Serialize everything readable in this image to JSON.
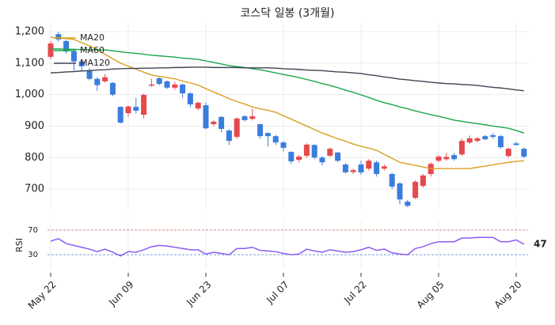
{
  "chart_data": [
    {
      "type": "candlestick",
      "title": "코스닥 일봉 (3개월)",
      "categories": [
        "May 22",
        null,
        null,
        null,
        null,
        null,
        null,
        null,
        null,
        null,
        "Jun 09",
        null,
        null,
        null,
        null,
        null,
        null,
        null,
        null,
        null,
        "Jun 23",
        null,
        null,
        null,
        null,
        null,
        null,
        null,
        null,
        null,
        "Jul 07",
        null,
        null,
        null,
        null,
        null,
        null,
        null,
        null,
        null,
        "Jul 22",
        null,
        null,
        null,
        null,
        null,
        null,
        null,
        null,
        null,
        "Aug 05",
        null,
        null,
        null,
        null,
        null,
        null,
        null,
        null,
        null,
        "Aug 20",
        null
      ],
      "open": [
        1120,
        1192,
        1170,
        1137,
        1105,
        1077,
        1050,
        1042,
        1037,
        961,
        941,
        961,
        936,
        1030,
        1052,
        1042,
        1022,
        1032,
        1004,
        956,
        966,
        906,
        929,
        886,
        866,
        931,
        923,
        906,
        878,
        868,
        848,
        818,
        793,
        806,
        840,
        800,
        806,
        816,
        778,
        754,
        778,
        765,
        785,
        765,
        748,
        718,
        660,
        672,
        710,
        748,
        790,
        795,
        808,
        810,
        848,
        853,
        868,
        871,
        868,
        805,
        845,
        828
      ],
      "high": [
        1170,
        1200,
        1175,
        1140,
        1112,
        1085,
        1055,
        1065,
        1040,
        963,
        965,
        990,
        1003,
        1050,
        1055,
        1045,
        1040,
        1035,
        1008,
        978,
        975,
        918,
        932,
        890,
        928,
        935,
        955,
        908,
        880,
        872,
        852,
        820,
        808,
        845,
        842,
        805,
        832,
        818,
        782,
        765,
        790,
        795,
        790,
        778,
        752,
        722,
        665,
        728,
        748,
        785,
        808,
        815,
        815,
        860,
        870,
        865,
        872,
        878,
        872,
        832,
        850,
        832
      ],
      "low": [
        1112,
        1168,
        1130,
        1075,
        1075,
        1045,
        1012,
        1038,
        995,
        908,
        930,
        940,
        925,
        1025,
        1030,
        1018,
        1015,
        990,
        960,
        950,
        890,
        900,
        880,
        840,
        860,
        915,
        918,
        860,
        835,
        840,
        820,
        780,
        785,
        800,
        795,
        775,
        802,
        785,
        750,
        748,
        745,
        760,
        740,
        760,
        700,
        652,
        642,
        668,
        705,
        740,
        785,
        790,
        790,
        805,
        843,
        848,
        855,
        860,
        828,
        800,
        838,
        798
      ],
      "close": [
        1162,
        1175,
        1137,
        1105,
        1090,
        1050,
        1030,
        1055,
        1000,
        911,
        962,
        949,
        999,
        1032,
        1034,
        1022,
        1032,
        1004,
        969,
        974,
        893,
        914,
        891,
        853,
        924,
        919,
        931,
        868,
        868,
        848,
        831,
        788,
        803,
        841,
        800,
        785,
        828,
        790,
        753,
        760,
        753,
        790,
        748,
        772,
        708,
        667,
        647,
        723,
        743,
        780,
        803,
        802,
        795,
        853,
        861,
        861,
        858,
        866,
        833,
        828,
        840,
        803
      ],
      "up_color": "#e5484d",
      "down_color": "#3b7ddd",
      "series": [
        {
          "name": "MA20",
          "color": "#d8a020",
          "values": [
            1182,
            1180,
            1178,
            1175,
            1165,
            1155,
            1143,
            1128,
            1114,
            1100,
            1090,
            1081,
            1071,
            1062,
            1058,
            1054,
            1050,
            1043,
            1037,
            1030,
            1019,
            1008,
            998,
            987,
            978,
            970,
            961,
            955,
            950,
            944,
            933,
            922,
            911,
            900,
            889,
            878,
            869,
            860,
            852,
            843,
            836,
            830,
            823,
            810,
            798,
            785,
            780,
            775,
            770,
            765,
            765,
            765,
            765,
            765,
            765,
            769,
            773,
            777,
            781,
            785,
            788,
            790
          ]
        },
        {
          "name": "MA60",
          "color": "#1ba64b",
          "values": [
            1145,
            1145,
            1144,
            1144,
            1143,
            1143,
            1142,
            1142,
            1139,
            1136,
            1133,
            1131,
            1128,
            1125,
            1123,
            1121,
            1119,
            1116,
            1114,
            1112,
            1107,
            1102,
            1097,
            1092,
            1089,
            1086,
            1082,
            1079,
            1074,
            1069,
            1064,
            1059,
            1054,
            1048,
            1042,
            1035,
            1029,
            1022,
            1014,
            1007,
            999,
            991,
            982,
            974,
            968,
            961,
            955,
            948,
            942,
            936,
            931,
            925,
            919,
            915,
            911,
            908,
            904,
            900,
            897,
            893,
            886,
            878
          ]
        },
        {
          "name": "MA120",
          "color": "#3e4451",
          "values": [
            1069,
            1070,
            1072,
            1073,
            1075,
            1076,
            1078,
            1079,
            1081,
            1082,
            1083,
            1083,
            1084,
            1084,
            1085,
            1085,
            1086,
            1086,
            1087,
            1087,
            1087,
            1086,
            1086,
            1086,
            1086,
            1085,
            1085,
            1085,
            1085,
            1084,
            1082,
            1081,
            1080,
            1078,
            1077,
            1076,
            1074,
            1072,
            1071,
            1069,
            1067,
            1063,
            1060,
            1056,
            1053,
            1049,
            1047,
            1044,
            1042,
            1039,
            1037,
            1035,
            1034,
            1032,
            1031,
            1029,
            1026,
            1023,
            1021,
            1018,
            1015,
            1012
          ]
        }
      ],
      "ylim": [
        635,
        1225
      ],
      "yticks": [
        700,
        800,
        900,
        {
          "value": 1000,
          "label": "1,000"
        },
        {
          "value": 1100,
          "label": "1,100"
        },
        {
          "value": 1200,
          "label": "1,200"
        }
      ],
      "grid": true,
      "legend": "upper left"
    },
    {
      "type": "line",
      "ylabel": "RSI",
      "color": "#8b5cf6",
      "values": [
        52,
        56,
        48,
        45,
        42,
        39,
        35,
        39,
        34,
        28,
        35,
        34,
        38,
        43,
        45,
        44,
        42,
        40,
        38,
        38,
        31,
        34,
        32,
        30,
        40,
        40,
        42,
        37,
        36,
        35,
        32,
        30,
        31,
        39,
        36,
        34,
        38,
        36,
        34,
        35,
        38,
        42,
        37,
        39,
        33,
        31,
        30,
        40,
        43,
        48,
        51,
        51,
        51,
        57,
        57,
        58,
        58,
        58,
        51,
        51,
        54,
        47
      ],
      "ylim": [
        7,
        84
      ],
      "yticks": [
        30,
        70
      ],
      "ytick_line_colors": [
        "#7a9ee0",
        "#e08a8a"
      ]
    }
  ]
}
